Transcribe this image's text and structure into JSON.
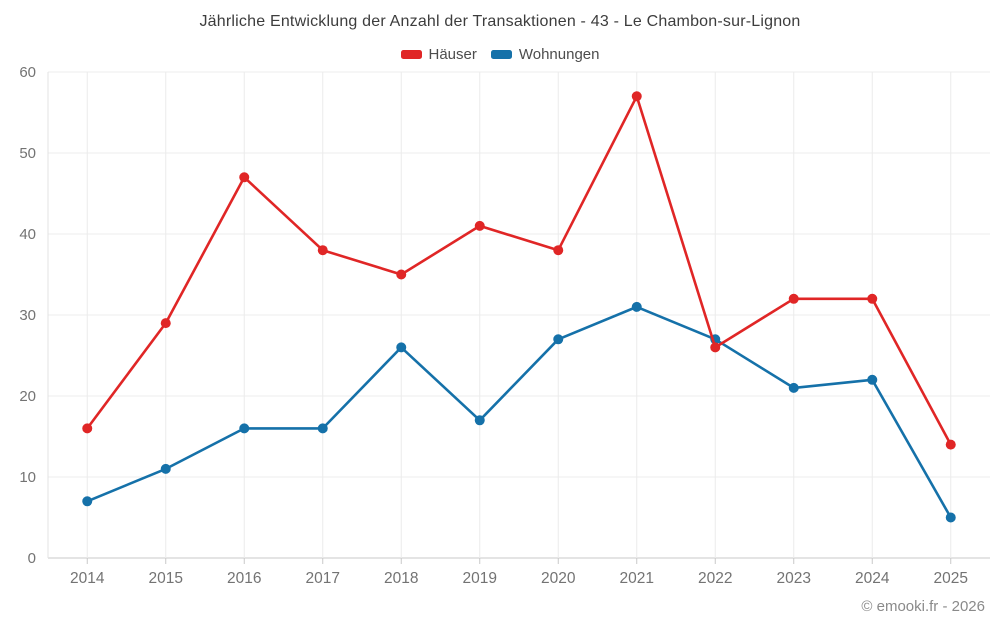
{
  "footer": "© emooki.fr - 2026",
  "chart_data": {
    "type": "line",
    "title": "Jährliche Entwicklung der Anzahl der Transaktionen - 43 - Le Chambon-sur-Lignon",
    "categories": [
      "2014",
      "2015",
      "2016",
      "2017",
      "2018",
      "2019",
      "2020",
      "2021",
      "2022",
      "2023",
      "2024",
      "2025"
    ],
    "series": [
      {
        "name": "Häuser",
        "color": "#e02626",
        "values": [
          16,
          29,
          47,
          38,
          35,
          41,
          38,
          57,
          26,
          32,
          32,
          14
        ]
      },
      {
        "name": "Wohnungen",
        "color": "#1571a9",
        "values": [
          7,
          11,
          16,
          16,
          26,
          17,
          27,
          31,
          27,
          21,
          22,
          5
        ]
      }
    ],
    "xlabel": "",
    "ylabel": "",
    "ylim": [
      0,
      60
    ],
    "yticks": [
      0,
      10,
      20,
      30,
      40,
      50,
      60
    ],
    "grid": true,
    "legend_position": "top",
    "marker_radius": 5,
    "line_width": 2.6
  }
}
